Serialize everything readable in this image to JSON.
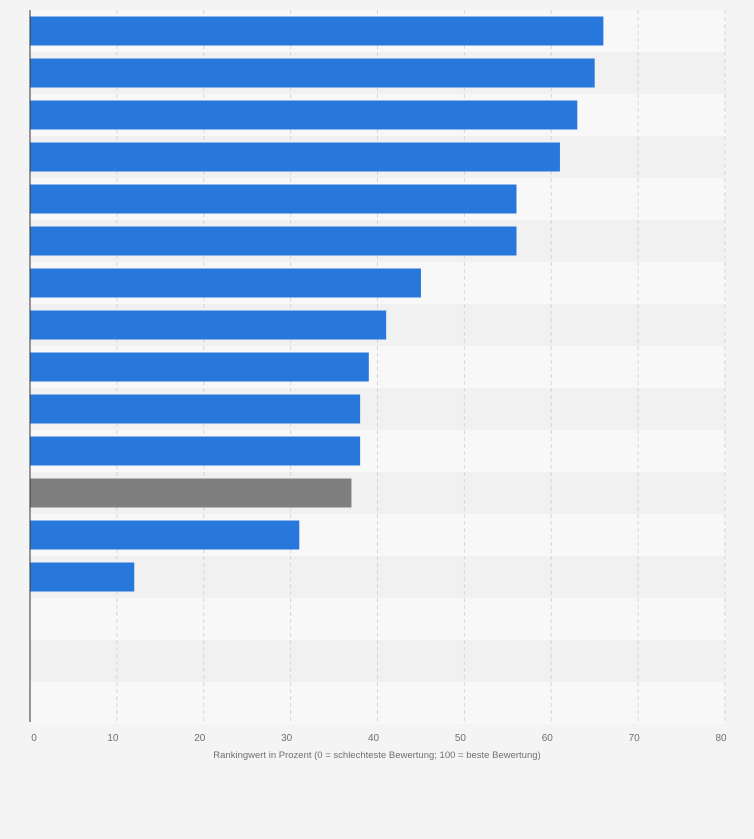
{
  "chart_data": {
    "type": "bar",
    "orientation": "horizontal",
    "title": "",
    "categories": [
      "",
      "",
      "",
      "",
      "",
      "",
      "",
      "",
      "",
      "",
      "",
      "",
      "",
      "",
      "",
      "",
      ""
    ],
    "values": [
      66,
      65,
      63,
      61,
      56,
      56,
      45,
      41,
      39,
      38,
      38,
      37,
      31,
      12,
      0,
      0,
      0
    ],
    "highlight_index": 11,
    "xlabel": "Rankingwert in Prozent (0 = schlechteste Bewertung; 100 = beste Bewertung)",
    "ylabel": "",
    "xlim": [
      0,
      80
    ],
    "xticks": [
      0,
      10,
      20,
      30,
      40,
      50,
      60,
      70,
      80
    ],
    "grid": true,
    "colors": {
      "bar": "#2878dc",
      "highlight": "#7f7f7f",
      "band_light": "#f8f8f8",
      "band_dark": "#f1f1f1",
      "grid": "#d6d6d6",
      "axis": "#333333",
      "background": "#f4f4f4"
    }
  }
}
